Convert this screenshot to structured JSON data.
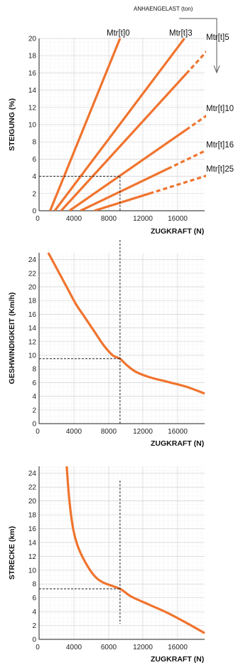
{
  "header": {
    "text": "ANHAENGELAST (ton)"
  },
  "colors": {
    "curve": "#f0742e",
    "grid_minor": "#ececec",
    "grid_major": "#d4d4d4",
    "axis": "#222222",
    "guide": "#222222"
  },
  "chart_data": [
    {
      "type": "line",
      "ylabel": "STEIGUNG (%)",
      "xlabel": "ZUGKRAFT (N)",
      "xlim": [
        0,
        18000
      ],
      "ylim": [
        0,
        20
      ],
      "xticks": [
        0,
        4000,
        8000,
        12000,
        16000
      ],
      "yticks": [
        0,
        2,
        4,
        6,
        8,
        10,
        12,
        14,
        16,
        18,
        20
      ],
      "grid": true,
      "series": [
        {
          "name": "Mtr[t]0",
          "points": [
            [
              1200,
              0
            ],
            [
              8800,
              20
            ]
          ],
          "dashed_from": null
        },
        {
          "name": "Mtr[t]3",
          "points": [
            [
              1700,
              0
            ],
            [
              15800,
              20
            ]
          ],
          "dashed_from": null
        },
        {
          "name": "Mtr[t]5",
          "points": [
            [
              2400,
              0
            ],
            [
              19500,
              20
            ]
          ],
          "dashed_from": 16000
        },
        {
          "name": "Mtr[t]10",
          "points": [
            [
              3300,
              0
            ],
            [
              19500,
              12
            ]
          ],
          "dashed_from": 16000
        },
        {
          "name": "Mtr[t]16",
          "points": [
            [
              4500,
              0
            ],
            [
              19500,
              7.7
            ]
          ],
          "dashed_from": 14000
        },
        {
          "name": "Mtr[t]25",
          "points": [
            [
              6000,
              0
            ],
            [
              19500,
              4.5
            ]
          ],
          "dashed_from": 12000
        }
      ],
      "guides": {
        "x": 8800,
        "y": 4
      }
    },
    {
      "type": "line",
      "ylabel": "GESHWINDIGKEIT (Km/h)",
      "xlabel": "ZUGKRAFT (N)",
      "xlim": [
        0,
        18000
      ],
      "ylim": [
        0,
        25
      ],
      "xticks": [
        0,
        4000,
        8000,
        12000,
        16000
      ],
      "yticks": [
        0,
        2,
        4,
        6,
        8,
        10,
        12,
        14,
        16,
        18,
        20,
        22,
        24
      ],
      "grid": true,
      "series": [
        {
          "name": "",
          "points": [
            [
              1000,
              25
            ],
            [
              2000,
              22.5
            ],
            [
              3000,
              20
            ],
            [
              4000,
              17.5
            ],
            [
              5000,
              15.5
            ],
            [
              6000,
              13.5
            ],
            [
              7000,
              11.5
            ],
            [
              8000,
              10
            ],
            [
              8800,
              9.5
            ],
            [
              9500,
              8.6
            ],
            [
              10500,
              7.6
            ],
            [
              12000,
              6.8
            ],
            [
              14000,
              6.1
            ],
            [
              16000,
              5.4
            ],
            [
              18000,
              4.4
            ]
          ]
        }
      ],
      "guides": {
        "x": 8800,
        "y": 9.5
      }
    },
    {
      "type": "line",
      "ylabel": "STRECKE (km)",
      "xlabel": "ZUGKRAFT (N)",
      "xlim": [
        0,
        18000
      ],
      "ylim": [
        0,
        25
      ],
      "xticks": [
        0,
        4000,
        6000,
        12000,
        16000
      ],
      "yticks": [
        0,
        2,
        4,
        6,
        8,
        10,
        12,
        14,
        16,
        18,
        20,
        22,
        24
      ],
      "grid": true,
      "series": [
        {
          "name": "",
          "points": [
            [
              3000,
              25
            ],
            [
              3300,
              20
            ],
            [
              3700,
              16
            ],
            [
              4200,
              13.5
            ],
            [
              5000,
              11.2
            ],
            [
              6000,
              9.2
            ],
            [
              7000,
              8.2
            ],
            [
              8800,
              7.3
            ],
            [
              10000,
              6.2
            ],
            [
              12000,
              5
            ],
            [
              14000,
              3.8
            ],
            [
              16000,
              2.4
            ],
            [
              18000,
              0.9
            ]
          ]
        }
      ],
      "guides": {
        "x": 8800,
        "y": 7.3
      }
    }
  ]
}
